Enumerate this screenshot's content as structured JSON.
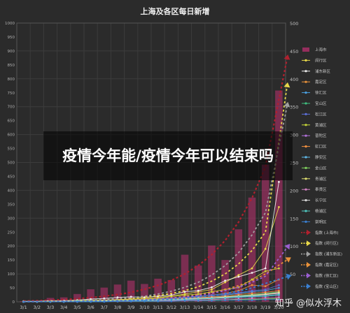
{
  "banner": {
    "text": "疫情今年能/疫情今年可以结束吗"
  },
  "watermark": {
    "text": "知乎 @似水浮木"
  },
  "chart_data": {
    "type": "bar",
    "title": "上海及各区每日新增",
    "categories": [
      "3/1",
      "3/2",
      "3/3",
      "3/4",
      "3/5",
      "3/6",
      "3/7",
      "3/8",
      "3/9",
      "3/10",
      "3/11",
      "3/12",
      "3/13",
      "3/14",
      "3/15",
      "3/16",
      "3/17",
      "3/18",
      "3/19",
      "3/20"
    ],
    "left_axis": {
      "ylim": [
        0,
        1000
      ],
      "ticks": [
        0,
        50,
        100,
        150,
        200,
        250,
        300,
        350,
        400,
        450,
        500,
        550,
        600,
        650,
        700,
        750,
        800,
        850,
        900,
        950,
        1000
      ]
    },
    "right_axis": {
      "ylim": [
        0,
        500
      ],
      "ticks": [
        0,
        50,
        100,
        150,
        200,
        250,
        300,
        350,
        400,
        450,
        500
      ]
    },
    "grid": true,
    "legend_position": "right",
    "bar_series": {
      "name": "上海市",
      "color": "#b0306a",
      "axis": "left",
      "values": [
        2,
        3,
        14,
        16,
        28,
        45,
        51,
        62,
        76,
        64,
        83,
        78,
        169,
        130,
        202,
        150,
        260,
        374,
        492,
        758
      ]
    },
    "line_series": [
      {
        "name": "闵行区",
        "color": "#e8d84a",
        "axis": "right",
        "values": [
          0,
          0,
          1,
          1,
          2,
          3,
          3,
          4,
          5,
          6,
          8,
          10,
          14,
          18,
          22,
          35,
          48,
          60,
          95,
          170
        ]
      },
      {
        "name": "浦东新区",
        "color": "#f0f0f0",
        "axis": "right",
        "values": [
          1,
          1,
          2,
          2,
          3,
          5,
          6,
          8,
          9,
          8,
          10,
          12,
          18,
          20,
          26,
          38,
          45,
          52,
          60,
          215
        ]
      },
      {
        "name": "嘉定区",
        "color": "#e8913a",
        "axis": "right",
        "values": [
          0,
          0,
          1,
          1,
          1,
          2,
          2,
          3,
          4,
          4,
          5,
          5,
          7,
          9,
          12,
          15,
          20,
          30,
          28,
          40
        ]
      },
      {
        "name": "徐汇区",
        "color": "#4aa0e0",
        "axis": "right",
        "values": [
          0,
          0,
          0,
          1,
          1,
          1,
          2,
          2,
          3,
          3,
          4,
          5,
          6,
          8,
          9,
          12,
          15,
          18,
          20,
          25
        ]
      },
      {
        "name": "宝山区",
        "color": "#3fbf7f",
        "axis": "right",
        "values": [
          0,
          0,
          0,
          0,
          1,
          1,
          1,
          2,
          2,
          3,
          3,
          4,
          5,
          6,
          7,
          9,
          11,
          13,
          15,
          18
        ]
      },
      {
        "name": "松江区",
        "color": "#5b6fd6",
        "axis": "right",
        "values": [
          0,
          0,
          0,
          1,
          1,
          2,
          2,
          3,
          3,
          4,
          5,
          7,
          8,
          10,
          12,
          14,
          16,
          20,
          22,
          30
        ]
      },
      {
        "name": "黄浦区",
        "color": "#c8d838",
        "axis": "right",
        "values": [
          0,
          0,
          1,
          1,
          2,
          2,
          3,
          3,
          4,
          5,
          6,
          10,
          12,
          14,
          18,
          22,
          26,
          40,
          55,
          60
        ]
      },
      {
        "name": "普陀区",
        "color": "#b070d8",
        "axis": "right",
        "values": [
          0,
          0,
          0,
          0,
          1,
          1,
          1,
          2,
          2,
          2,
          3,
          3,
          4,
          5,
          6,
          8,
          9,
          11,
          13,
          16
        ]
      },
      {
        "name": "虹口区",
        "color": "#f29040",
        "axis": "right",
        "values": [
          0,
          0,
          0,
          1,
          1,
          1,
          2,
          2,
          2,
          3,
          4,
          5,
          6,
          7,
          9,
          10,
          13,
          15,
          17,
          20
        ]
      },
      {
        "name": "静安区",
        "color": "#5fb8e8",
        "axis": "right",
        "values": [
          0,
          0,
          0,
          0,
          1,
          1,
          1,
          1,
          2,
          2,
          3,
          3,
          4,
          5,
          6,
          7,
          8,
          9,
          10,
          12
        ]
      },
      {
        "name": "金山区",
        "color": "#7fcf5f",
        "axis": "right",
        "values": [
          0,
          0,
          0,
          0,
          0,
          0,
          1,
          1,
          1,
          1,
          1,
          2,
          2,
          2,
          3,
          3,
          4,
          4,
          5,
          6
        ]
      },
      {
        "name": "青浦区",
        "color": "#e0e070",
        "axis": "right",
        "values": [
          0,
          0,
          0,
          0,
          1,
          1,
          1,
          2,
          2,
          3,
          3,
          4,
          5,
          6,
          7,
          9,
          10,
          12,
          14,
          17
        ]
      },
      {
        "name": "奉贤区",
        "color": "#d080c0",
        "axis": "right",
        "values": [
          0,
          0,
          0,
          0,
          0,
          1,
          1,
          1,
          1,
          2,
          2,
          2,
          3,
          3,
          4,
          5,
          5,
          6,
          7,
          8
        ]
      },
      {
        "name": "长宁区",
        "color": "#d8d8d8",
        "axis": "right",
        "values": [
          0,
          0,
          0,
          1,
          1,
          1,
          2,
          2,
          2,
          3,
          3,
          4,
          5,
          6,
          7,
          8,
          10,
          11,
          13,
          15
        ]
      },
      {
        "name": "杨浦区",
        "color": "#50c8c0",
        "axis": "right",
        "values": [
          0,
          0,
          0,
          0,
          1,
          1,
          1,
          2,
          2,
          2,
          3,
          4,
          4,
          5,
          6,
          7,
          9,
          10,
          11,
          13
        ]
      },
      {
        "name": "崇明区",
        "color": "#3a7fd0",
        "axis": "right",
        "values": [
          0,
          0,
          0,
          0,
          0,
          0,
          0,
          1,
          1,
          1,
          1,
          1,
          2,
          2,
          2,
          3,
          3,
          3,
          4,
          4
        ]
      }
    ],
    "trend_series": [
      {
        "name": "指数 (上海市)",
        "color": "#b0202e",
        "axis": "left",
        "values": [
          3,
          4,
          6,
          8,
          11,
          15,
          20,
          26,
          34,
          45,
          59,
          77,
          100,
          130,
          169,
          220,
          286,
          372,
          484,
          870
        ]
      },
      {
        "name": "指数 (闵行区)",
        "color": "#e8d84a",
        "axis": "right",
        "values": [
          0.5,
          0.7,
          1,
          1.3,
          1.8,
          2.5,
          3.4,
          4.6,
          6.2,
          8.4,
          11,
          15,
          20,
          27,
          37,
          50,
          68,
          92,
          125,
          385
        ]
      },
      {
        "name": "指数 (浦东新区)",
        "color": "#a0a0a0",
        "axis": "right",
        "values": [
          0.6,
          0.8,
          1.1,
          1.5,
          2.1,
          2.9,
          4,
          5.5,
          7.5,
          10,
          14,
          19,
          26,
          35,
          48,
          65,
          88,
          120,
          160,
          350
        ]
      },
      {
        "name": "指数 (嘉定区)",
        "color": "#e8913a",
        "axis": "right",
        "values": [
          0.3,
          0.4,
          0.6,
          0.8,
          1,
          1.4,
          1.8,
          2.4,
          3.2,
          4.2,
          5.5,
          7.3,
          9.6,
          12.7,
          16.7,
          22,
          29,
          38,
          50,
          75
        ]
      },
      {
        "name": "指数 (徐汇区)",
        "color": "#9a5fd0",
        "axis": "right",
        "values": [
          0.3,
          0.4,
          0.5,
          0.7,
          0.9,
          1.2,
          1.6,
          2.1,
          2.8,
          3.7,
          4.9,
          6.5,
          8.6,
          11.4,
          15,
          20,
          26,
          35,
          46,
          97
        ]
      },
      {
        "name": "指数 (宝山区)",
        "color": "#3a7fd0",
        "axis": "right",
        "values": [
          0.2,
          0.3,
          0.4,
          0.5,
          0.7,
          0.9,
          1.2,
          1.6,
          2.1,
          2.8,
          3.7,
          4.9,
          6.5,
          8.6,
          11,
          15,
          19,
          25,
          33,
          45
        ]
      }
    ]
  }
}
